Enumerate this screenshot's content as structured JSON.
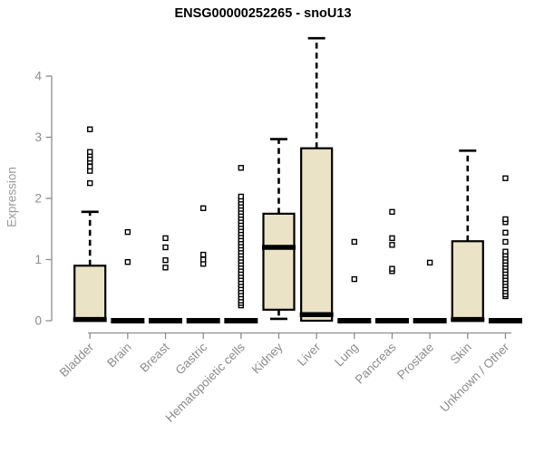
{
  "chart_data": {
    "type": "boxplot",
    "title": "ENSG00000252265 - snoU13",
    "ylabel": "Expression",
    "xlabel": "",
    "ylim": [
      0,
      4.7
    ],
    "yticks": [
      0,
      1,
      2,
      3,
      4
    ],
    "grid": false,
    "legend": "none",
    "colors": {
      "box_fill": "#EBE3C6",
      "box_stroke": "#000000",
      "median": "#000000",
      "whisker": "#000000",
      "outlier_stroke": "#000000",
      "outlier_fill": "#FFFFFF",
      "axis": "#8C8C8C",
      "tick_label": "#8C8C8C",
      "title": "#000000",
      "background": "#FFFFFF"
    },
    "categories": [
      "Bladder",
      "Brain",
      "Breast",
      "Gastric",
      "Hematopoietic cells",
      "Kidney",
      "Liver",
      "Lung",
      "Pancreas",
      "Prostate",
      "Skin",
      "Unknown / Other"
    ],
    "series": [
      {
        "category": "Bladder",
        "q1": 0,
        "median": 0.02,
        "q3": 0.9,
        "whisker_low": 0,
        "whisker_high": 1.78,
        "outliers": [
          2.25,
          2.45,
          2.52,
          2.6,
          2.65,
          2.71,
          2.76,
          3.13
        ]
      },
      {
        "category": "Brain",
        "q1": 0,
        "median": 0,
        "q3": 0,
        "whisker_low": 0,
        "whisker_high": 0,
        "outliers": [
          0.96,
          1.45
        ]
      },
      {
        "category": "Breast",
        "q1": 0,
        "median": 0,
        "q3": 0,
        "whisker_low": 0,
        "whisker_high": 0,
        "outliers": [
          0.87,
          0.99,
          1.2,
          1.35
        ]
      },
      {
        "category": "Gastric",
        "q1": 0,
        "median": 0,
        "q3": 0,
        "whisker_low": 0,
        "whisker_high": 0,
        "outliers": [
          0.93,
          1.0,
          1.08,
          1.84
        ]
      },
      {
        "category": "Hematopoietic cells",
        "q1": 0,
        "median": 0,
        "q3": 0,
        "whisker_low": 0,
        "whisker_high": 0,
        "outliers": [
          0.25,
          0.29,
          0.33,
          0.38,
          0.43,
          0.48,
          0.53,
          0.58,
          0.63,
          0.68,
          0.73,
          0.78,
          0.83,
          0.88,
          0.93,
          0.98,
          1.03,
          1.08,
          1.13,
          1.18,
          1.23,
          1.28,
          1.33,
          1.38,
          1.43,
          1.48,
          1.53,
          1.58,
          1.63,
          1.68,
          1.73,
          1.78,
          1.83,
          1.88,
          1.93,
          1.98,
          2.03,
          2.5
        ]
      },
      {
        "category": "Kidney",
        "q1": 0.18,
        "median": 1.2,
        "q3": 1.75,
        "whisker_low": 0.03,
        "whisker_high": 2.97,
        "outliers": []
      },
      {
        "category": "Liver",
        "q1": 0,
        "median": 0.1,
        "q3": 2.82,
        "whisker_low": 0,
        "whisker_high": 4.62,
        "outliers": []
      },
      {
        "category": "Lung",
        "q1": 0,
        "median": 0,
        "q3": 0,
        "whisker_low": 0,
        "whisker_high": 0,
        "outliers": [
          0.68,
          1.29
        ]
      },
      {
        "category": "Pancreas",
        "q1": 0,
        "median": 0,
        "q3": 0,
        "whisker_low": 0,
        "whisker_high": 0,
        "outliers": [
          0.81,
          0.85,
          1.24,
          1.35,
          1.78
        ]
      },
      {
        "category": "Prostate",
        "q1": 0,
        "median": 0,
        "q3": 0,
        "whisker_low": 0,
        "whisker_high": 0,
        "outliers": [
          0.95
        ]
      },
      {
        "category": "Skin",
        "q1": 0,
        "median": 0.02,
        "q3": 1.3,
        "whisker_low": 0,
        "whisker_high": 2.78,
        "outliers": []
      },
      {
        "category": "Unknown / Other",
        "q1": 0,
        "median": 0,
        "q3": 0,
        "whisker_low": 0,
        "whisker_high": 0,
        "outliers": [
          0.4,
          0.43,
          0.48,
          0.53,
          0.58,
          0.63,
          0.68,
          0.73,
          0.78,
          0.83,
          0.88,
          0.93,
          0.98,
          1.03,
          1.08,
          1.13,
          1.29,
          1.44,
          1.61,
          1.66,
          2.33
        ]
      }
    ]
  }
}
